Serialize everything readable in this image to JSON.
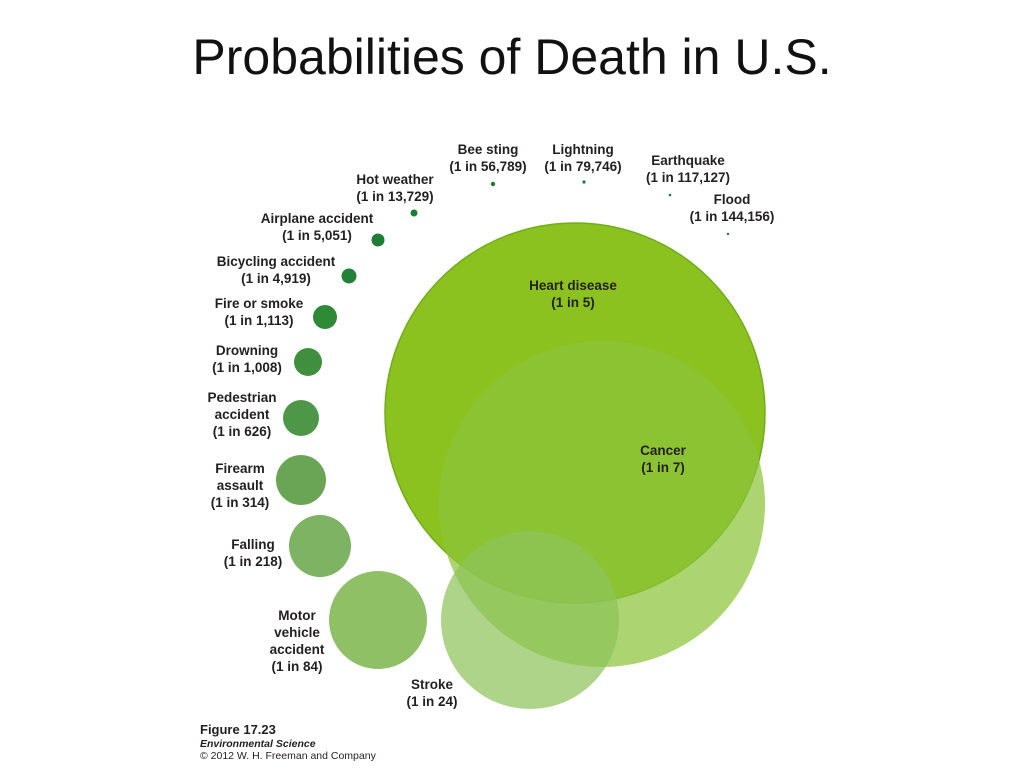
{
  "slide": {
    "title": "Probabilities of Death in U.S."
  },
  "caption": {
    "figure": "Figure 17.23",
    "book": "Environmental Science",
    "copyright": "© 2012 W. H. Freeman and Company"
  },
  "chart_data": {
    "type": "bubble",
    "title": "Probabilities of Death in U.S.",
    "value_format": "1 in N",
    "items": [
      {
        "cause": "Heart disease",
        "label_lines": [
          "Heart disease",
          "(1 in 5)"
        ],
        "odds": 5,
        "color": "#8cc21f"
      },
      {
        "cause": "Cancer",
        "label_lines": [
          "Cancer",
          "(1 in 7)"
        ],
        "odds": 7,
        "color": "#8cc43a"
      },
      {
        "cause": "Stroke",
        "label_lines": [
          "Stroke",
          "(1 in 24)"
        ],
        "odds": 24,
        "color": "#8dc35a"
      },
      {
        "cause": "Motor vehicle accident",
        "label_lines": [
          "Motor",
          "vehicle",
          "accident",
          "(1 in 84)"
        ],
        "odds": 84,
        "color": "#8fc066"
      },
      {
        "cause": "Falling",
        "label_lines": [
          "Falling",
          "(1 in 218)"
        ],
        "odds": 218,
        "color": "#7db363"
      },
      {
        "cause": "Firearm assault",
        "label_lines": [
          "Firearm",
          "assault",
          "(1 in 314)"
        ],
        "odds": 314,
        "color": "#6aa556"
      },
      {
        "cause": "Pedestrian accident",
        "label_lines": [
          "Pedestrian",
          "accident",
          "(1 in 626)"
        ],
        "odds": 626,
        "color": "#4e9748"
      },
      {
        "cause": "Drowning",
        "label_lines": [
          "Drowning",
          "(1 in 1,008)"
        ],
        "odds": 1008,
        "color": "#3f8f3f"
      },
      {
        "cause": "Fire or smoke",
        "label_lines": [
          "Fire or smoke",
          "(1 in 1,113)"
        ],
        "odds": 1113,
        "color": "#2f8a38"
      },
      {
        "cause": "Bicycling accident",
        "label_lines": [
          "Bicycling accident",
          "(1 in 4,919)"
        ],
        "odds": 4919,
        "color": "#23823a"
      },
      {
        "cause": "Airplane accident",
        "label_lines": [
          "Airplane accident",
          "(1 in 5,051)"
        ],
        "odds": 5051,
        "color": "#1e7d36"
      },
      {
        "cause": "Hot weather",
        "label_lines": [
          "Hot weather",
          "(1 in 13,729)"
        ],
        "odds": 13729,
        "color": "#1b7a34"
      },
      {
        "cause": "Bee sting",
        "label_lines": [
          "Bee sting",
          "(1 in 56,789)"
        ],
        "odds": 56789,
        "color": "#1b7a34"
      },
      {
        "cause": "Lightning",
        "label_lines": [
          "Lightning",
          "(1 in 79,746)"
        ],
        "odds": 79746,
        "color": "#1b7a34"
      },
      {
        "cause": "Earthquake",
        "label_lines": [
          "Earthquake",
          "(1 in 117,127)"
        ],
        "odds": 117127,
        "color": "#1b7a34"
      },
      {
        "cause": "Flood",
        "label_lines": [
          "Flood",
          "(1 in 144,156)"
        ],
        "odds": 144156,
        "color": "#1b7a34"
      }
    ]
  }
}
